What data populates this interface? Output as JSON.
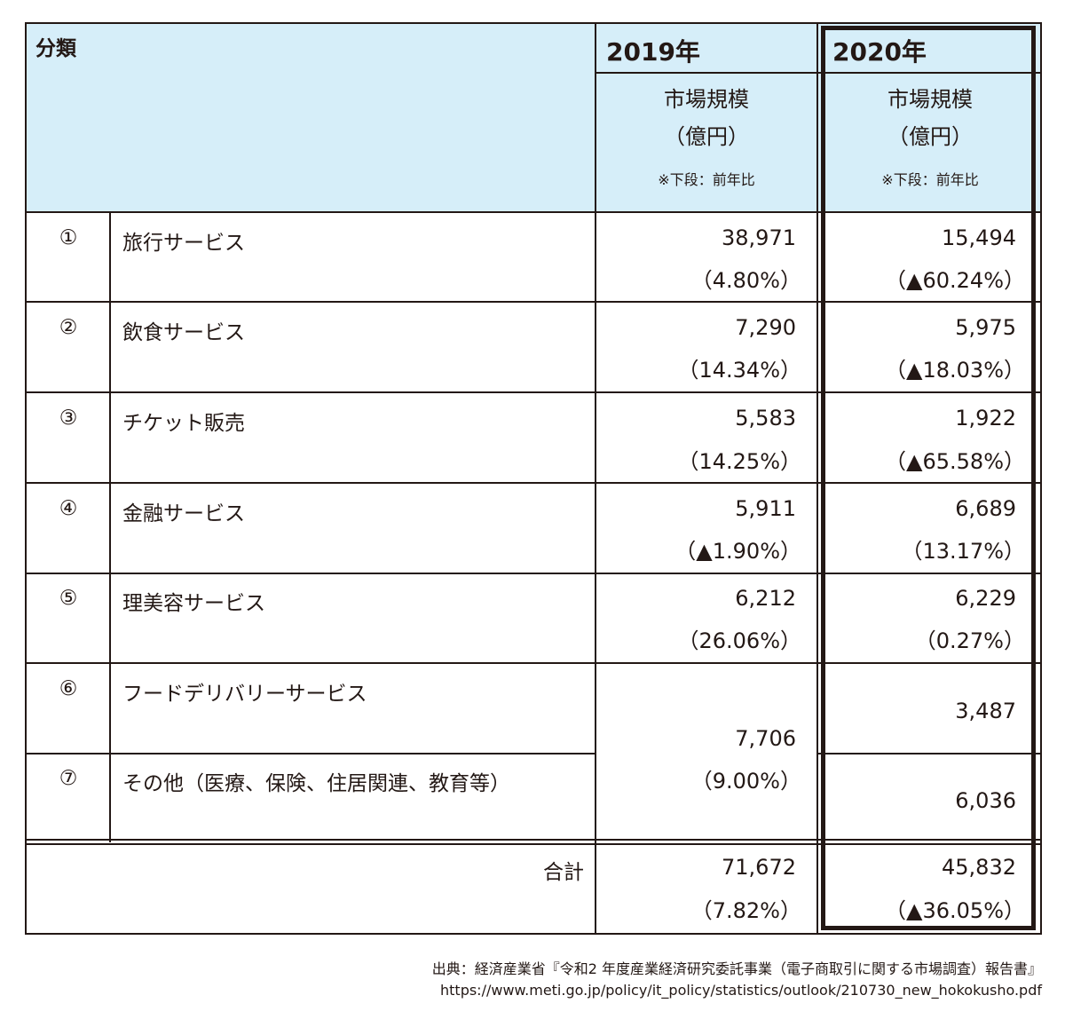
{
  "header": {
    "category_label": "分類",
    "year_2019": "2019年",
    "year_2020": "2020年",
    "metric_line1": "市場規模",
    "metric_line2": "（億円）",
    "note": "※下段：前年比"
  },
  "rows": [
    {
      "num": "①",
      "name": "旅行サービス",
      "v2019": "38,971",
      "p2019": "（4.80%）",
      "v2020": "15,494",
      "p2020": "（▲60.24%）"
    },
    {
      "num": "②",
      "name": "飲食サービス",
      "v2019": "7,290",
      "p2019": "（14.34%）",
      "v2020": "5,975",
      "p2020": "（▲18.03%）"
    },
    {
      "num": "③",
      "name": "チケット販売",
      "v2019": "5,583",
      "p2019": "（14.25%）",
      "v2020": "1,922",
      "p2020": "（▲65.58%）"
    },
    {
      "num": "④",
      "name": "金融サービス",
      "v2019": "5,911",
      "p2019": "（▲1.90%）",
      "v2020": "6,689",
      "p2020": "（13.17%）"
    },
    {
      "num": "⑤",
      "name": "理美容サービス",
      "v2019": "6,212",
      "p2019": "（26.06%）",
      "v2020": "6,229",
      "p2020": "（0.27%）"
    },
    {
      "num": "⑥",
      "name": "フードデリバリーサービス",
      "v2020": "3,487"
    },
    {
      "num": "⑦",
      "name": "その他（医療、保険、住居関連、教育等）",
      "v2020": "6,036"
    }
  ],
  "merged_2019": {
    "value": "7,706",
    "pct": "（9.00%）"
  },
  "total": {
    "label": "合計",
    "v2019": "71,672",
    "p2019": "（7.82%）",
    "v2020": "45,832",
    "p2020": "（▲36.05%）"
  },
  "source": {
    "line1": "出典：経済産業省『令和2 年度産業経済研究委託事業（電子商取引に関する市場調査）報告書』",
    "line2": "https://www.meti.go.jp/policy/it_policy/statistics/outlook/210730_new_hokokusho.pdf"
  },
  "colors": {
    "header_bg": "#d6eef9",
    "text": "#231815"
  }
}
